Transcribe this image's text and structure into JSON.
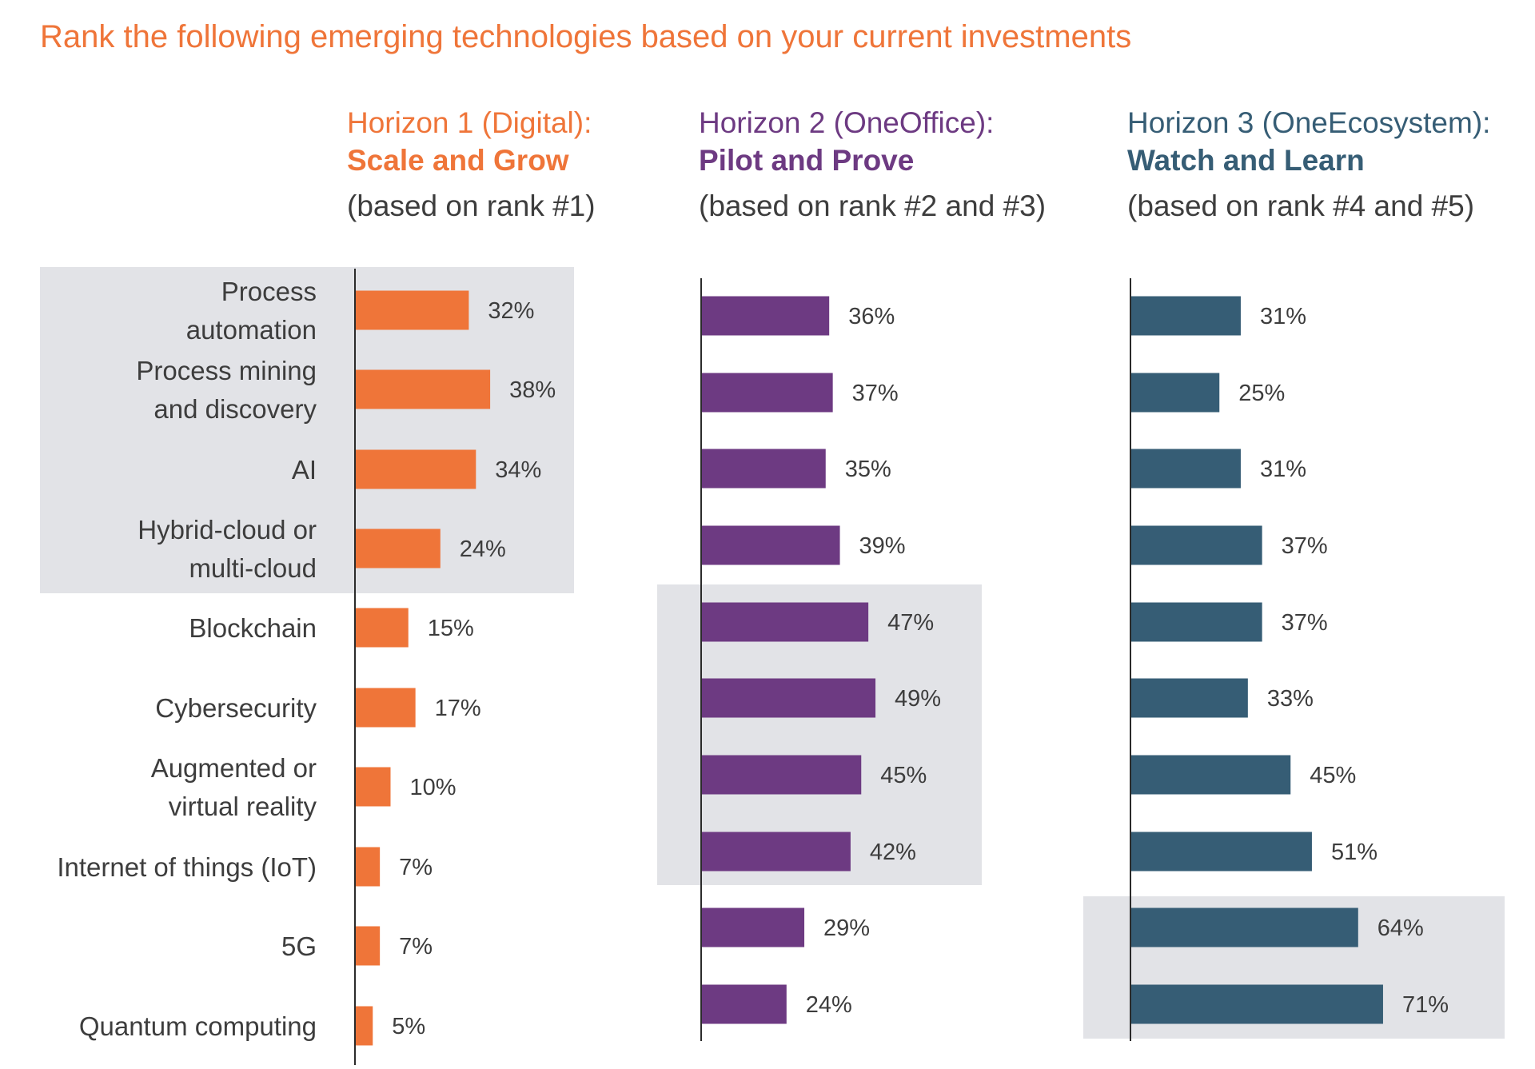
{
  "title": "Rank the following emerging technologies based on your current investments",
  "colors": {
    "title": "#ef7539",
    "horizon1": "#ef7539",
    "horizon2": "#6d3a82",
    "horizon3": "#365d75",
    "highlight": "#e2e3e7",
    "axis": "#2b2b2b",
    "label_text": "#3d3d3d"
  },
  "chart_data": [
    {
      "type": "bar",
      "orientation": "horizontal",
      "header": [
        "Horizon 1 (Digital):",
        "Scale and Grow",
        "(based on rank #1)"
      ],
      "categories": [
        "Process automation",
        "Process mining and discovery",
        "AI",
        "Hybrid-cloud or multi-cloud",
        "Blockchain",
        "Cybersecurity",
        "Augmented or virtual reality",
        "Internet of things (IoT)",
        "5G",
        "Quantum computing"
      ],
      "category_labels": [
        [
          "Process",
          "automation"
        ],
        [
          "Process mining",
          "and discovery"
        ],
        [
          "AI"
        ],
        [
          "Hybrid-cloud or",
          "multi-cloud"
        ],
        [
          "Blockchain"
        ],
        [
          "Cybersecurity"
        ],
        [
          "Augmented or",
          "virtual reality"
        ],
        [
          "Internet of things (IoT)"
        ],
        [
          "5G"
        ],
        [
          "Quantum computing"
        ]
      ],
      "values": [
        32,
        38,
        34,
        24,
        15,
        17,
        10,
        7,
        7,
        5
      ],
      "data_labels": [
        "32%",
        "38%",
        "34%",
        "24%",
        "15%",
        "17%",
        "10%",
        "7%",
        "7%",
        "5%"
      ],
      "highlighted": [
        "Process automation",
        "Process mining and discovery",
        "AI",
        "Hybrid-cloud or multi-cloud"
      ],
      "xlim": [
        0,
        100
      ]
    },
    {
      "type": "bar",
      "orientation": "horizontal",
      "header": [
        "Horizon 2 (OneOffice):",
        "Pilot and Prove",
        "(based on rank #2 and #3)"
      ],
      "categories": [
        "Process automation",
        "Process mining and discovery",
        "AI",
        "Hybrid-cloud or multi-cloud",
        "Blockchain",
        "Cybersecurity",
        "Augmented or virtual reality",
        "Internet of things (IoT)",
        "5G",
        "Quantum computing"
      ],
      "values": [
        36,
        37,
        35,
        39,
        47,
        49,
        45,
        42,
        29,
        24
      ],
      "data_labels": [
        "36%",
        "37%",
        "35%",
        "39%",
        "47%",
        "49%",
        "45%",
        "42%",
        "29%",
        "24%"
      ],
      "highlighted": [
        "Blockchain",
        "Cybersecurity",
        "Augmented or virtual reality",
        "Internet of things (IoT)"
      ],
      "xlim": [
        0,
        100
      ]
    },
    {
      "type": "bar",
      "orientation": "horizontal",
      "header": [
        "Horizon 3 (OneEcosystem):",
        "Watch and Learn",
        "(based on rank #4 and #5)"
      ],
      "categories": [
        "Process automation",
        "Process mining and discovery",
        "AI",
        "Hybrid-cloud or multi-cloud",
        "Blockchain",
        "Cybersecurity",
        "Augmented or virtual reality",
        "Internet of things (IoT)",
        "5G",
        "Quantum computing"
      ],
      "values": [
        31,
        25,
        31,
        37,
        37,
        33,
        45,
        51,
        64,
        71
      ],
      "data_labels": [
        "31%",
        "25%",
        "31%",
        "37%",
        "37%",
        "33%",
        "45%",
        "51%",
        "64%",
        "71%"
      ],
      "highlighted": [
        "5G",
        "Quantum computing"
      ],
      "xlim": [
        0,
        100
      ]
    }
  ]
}
